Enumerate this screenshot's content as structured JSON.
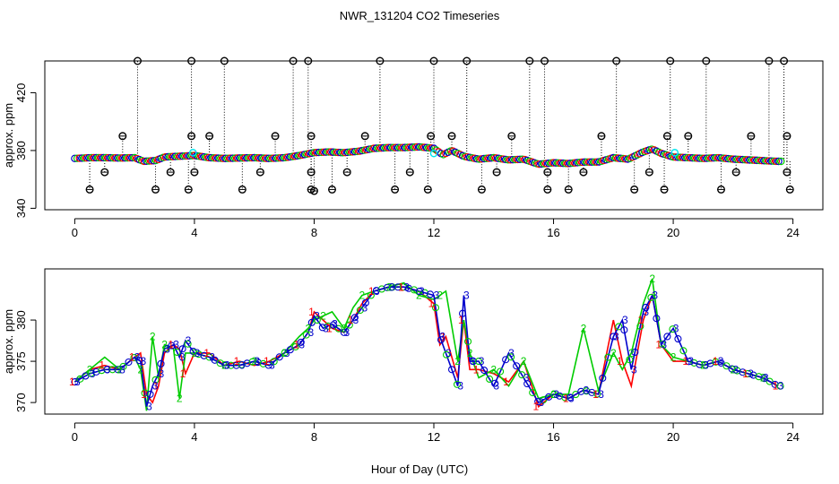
{
  "title": "NWR_131204  CO2 Timeseries",
  "xlabel": "Hour of Day (UTC)",
  "colors": {
    "series1": "#ff0000",
    "series2": "#00cc00",
    "series3": "#0000cc",
    "flagged": "#000000",
    "cyan": "#00e5ee",
    "dotted": "#000000"
  },
  "chart_data": [
    {
      "type": "scatter",
      "name": "top-panel",
      "ylabel": "approx. ppm",
      "xlim": [
        -1,
        25
      ],
      "ylim": [
        339,
        442
      ],
      "xticks": [
        0,
        4,
        8,
        12,
        16,
        20,
        24
      ],
      "yticks": [
        340,
        380,
        420
      ],
      "ytick_labels": [
        "340",
        "380",
        "420"
      ],
      "xtick_labels": [
        "0",
        "4",
        "8",
        "12",
        "16",
        "20",
        "24"
      ],
      "baseline": [
        [
          0,
          374.5
        ],
        [
          0.5,
          375
        ],
        [
          1,
          375
        ],
        [
          1.5,
          374.8
        ],
        [
          2,
          375
        ],
        [
          2.3,
          372.5
        ],
        [
          2.7,
          373
        ],
        [
          3,
          375.5
        ],
        [
          3.5,
          376
        ],
        [
          4,
          376.5
        ],
        [
          4.5,
          375
        ],
        [
          5,
          374.5
        ],
        [
          5.5,
          374.8
        ],
        [
          6,
          375
        ],
        [
          6.5,
          374.5
        ],
        [
          7,
          375
        ],
        [
          7.5,
          376.5
        ],
        [
          8,
          378.5
        ],
        [
          8.5,
          379
        ],
        [
          9,
          378.5
        ],
        [
          9.5,
          379.5
        ],
        [
          10,
          381.5
        ],
        [
          10.5,
          382
        ],
        [
          11,
          382
        ],
        [
          11.5,
          382.5
        ],
        [
          12,
          381.5
        ],
        [
          12.3,
          377
        ],
        [
          12.6,
          380
        ],
        [
          13,
          376
        ],
        [
          13.5,
          374
        ],
        [
          14,
          375
        ],
        [
          14.5,
          373.5
        ],
        [
          15,
          374
        ],
        [
          15.5,
          370.5
        ],
        [
          16,
          371.5
        ],
        [
          16.5,
          371
        ],
        [
          17,
          372
        ],
        [
          17.5,
          372
        ],
        [
          18,
          375
        ],
        [
          18.5,
          374
        ],
        [
          19,
          379
        ],
        [
          19.3,
          381
        ],
        [
          19.6,
          378
        ],
        [
          20,
          375.5
        ],
        [
          20.5,
          375
        ],
        [
          21,
          374.5
        ],
        [
          21.5,
          375
        ],
        [
          22,
          374
        ],
        [
          22.5,
          373.5
        ],
        [
          23,
          373
        ],
        [
          23.5,
          372.5
        ]
      ],
      "flagged_points": [
        [
          0.5,
          353
        ],
        [
          1.0,
          365
        ],
        [
          1.6,
          390
        ],
        [
          2.1,
          442
        ],
        [
          2.7,
          353
        ],
        [
          3.2,
          365
        ],
        [
          3.8,
          353
        ],
        [
          3.9,
          442
        ],
        [
          3.9,
          390
        ],
        [
          4.0,
          365
        ],
        [
          4.5,
          390
        ],
        [
          5.0,
          442
        ],
        [
          5.6,
          353
        ],
        [
          6.2,
          365
        ],
        [
          6.7,
          390
        ],
        [
          7.3,
          442
        ],
        [
          7.8,
          442
        ],
        [
          7.9,
          390
        ],
        [
          7.9,
          365
        ],
        [
          7.9,
          353
        ],
        [
          8.0,
          352
        ],
        [
          8.6,
          353
        ],
        [
          9.1,
          365
        ],
        [
          9.7,
          390
        ],
        [
          10.2,
          442
        ],
        [
          10.7,
          353
        ],
        [
          11.2,
          365
        ],
        [
          11.8,
          353
        ],
        [
          11.9,
          390
        ],
        [
          12.0,
          442
        ],
        [
          12.6,
          390
        ],
        [
          13.1,
          442
        ],
        [
          13.6,
          353
        ],
        [
          14.1,
          365
        ],
        [
          14.6,
          390
        ],
        [
          15.2,
          442
        ],
        [
          15.7,
          442
        ],
        [
          15.8,
          365
        ],
        [
          15.8,
          353
        ],
        [
          16.5,
          353
        ],
        [
          17.0,
          365
        ],
        [
          17.6,
          390
        ],
        [
          18.1,
          442
        ],
        [
          18.7,
          353
        ],
        [
          19.2,
          365
        ],
        [
          19.7,
          353
        ],
        [
          19.8,
          390
        ],
        [
          19.9,
          442
        ],
        [
          20.5,
          390
        ],
        [
          21.1,
          442
        ],
        [
          21.6,
          353
        ],
        [
          22.1,
          365
        ],
        [
          22.6,
          390
        ],
        [
          23.2,
          442
        ],
        [
          23.7,
          442
        ],
        [
          23.8,
          390
        ],
        [
          23.8,
          365
        ],
        [
          23.9,
          353
        ]
      ],
      "cyan_points": [
        [
          3.95,
          378.5
        ],
        [
          12.0,
          378
        ],
        [
          20.05,
          378.5
        ]
      ]
    },
    {
      "type": "line",
      "name": "bottom-panel",
      "ylabel": "approx. ppm",
      "xlim": [
        -1,
        25
      ],
      "ylim": [
        368.6,
        386.2
      ],
      "xticks": [
        0,
        4,
        8,
        12,
        16,
        20,
        24
      ],
      "yticks": [
        370,
        375,
        380
      ],
      "ytick_labels": [
        "370",
        "375",
        "380"
      ],
      "xtick_labels": [
        "0",
        "4",
        "8",
        "12",
        "16",
        "20",
        "24"
      ],
      "series": [
        {
          "name": "1",
          "values": [
            [
              0,
              372.5
            ],
            [
              0.5,
              374
            ],
            [
              1,
              374.5
            ],
            [
              1.5,
              374
            ],
            [
              2,
              375.5
            ],
            [
              2.2,
              376
            ],
            [
              2.4,
              371
            ],
            [
              2.6,
              370
            ],
            [
              2.8,
              372
            ],
            [
              3,
              376
            ],
            [
              3.3,
              377
            ],
            [
              3.5,
              376.5
            ],
            [
              3.7,
              373.5
            ],
            [
              4,
              376
            ],
            [
              4.5,
              376
            ],
            [
              5,
              374.5
            ],
            [
              5.5,
              375
            ],
            [
              6,
              374.5
            ],
            [
              6.5,
              375
            ],
            [
              7,
              376
            ],
            [
              7.5,
              377
            ],
            [
              7.8,
              378.5
            ],
            [
              8,
              381
            ],
            [
              8.3,
              380
            ],
            [
              8.6,
              379
            ],
            [
              9,
              378.5
            ],
            [
              9.3,
              380
            ],
            [
              9.6,
              382
            ],
            [
              10,
              383.5
            ],
            [
              10.5,
              384
            ],
            [
              11,
              384
            ],
            [
              11.5,
              383.5
            ],
            [
              12,
              382
            ],
            [
              12.2,
              377
            ],
            [
              12.4,
              378
            ],
            [
              12.8,
              373
            ],
            [
              13,
              380
            ],
            [
              13.2,
              374
            ],
            [
              13.5,
              374
            ],
            [
              14,
              373.5
            ],
            [
              14.5,
              372.5
            ],
            [
              15,
              375
            ],
            [
              15.5,
              369.5
            ],
            [
              16,
              371
            ],
            [
              16.5,
              370.5
            ],
            [
              17,
              371.5
            ],
            [
              17.5,
              371
            ],
            [
              18,
              380
            ],
            [
              18.3,
              375
            ],
            [
              18.6,
              372
            ],
            [
              19,
              380
            ],
            [
              19.3,
              383
            ],
            [
              19.6,
              377
            ],
            [
              20,
              375
            ],
            [
              20.5,
              375
            ],
            [
              21,
              374.5
            ],
            [
              21.5,
              375
            ],
            [
              22,
              374
            ],
            [
              22.5,
              373.5
            ],
            [
              23,
              373
            ],
            [
              23.5,
              372
            ]
          ]
        },
        {
          "name": "2",
          "values": [
            [
              0,
              372.5
            ],
            [
              0.5,
              374
            ],
            [
              1,
              375.5
            ],
            [
              1.5,
              374
            ],
            [
              2,
              375.5
            ],
            [
              2.2,
              374
            ],
            [
              2.4,
              369
            ],
            [
              2.6,
              378
            ],
            [
              2.8,
              373
            ],
            [
              3,
              377
            ],
            [
              3.3,
              376.5
            ],
            [
              3.5,
              370.5
            ],
            [
              3.7,
              376
            ],
            [
              4,
              376
            ],
            [
              4.5,
              375.5
            ],
            [
              5,
              374.5
            ],
            [
              5.5,
              374.5
            ],
            [
              6,
              375
            ],
            [
              6.5,
              374.5
            ],
            [
              7,
              376
            ],
            [
              7.5,
              378
            ],
            [
              7.8,
              379
            ],
            [
              8,
              380
            ],
            [
              8.3,
              380.5
            ],
            [
              8.6,
              381
            ],
            [
              9,
              379
            ],
            [
              9.3,
              381.5
            ],
            [
              9.6,
              383
            ],
            [
              10,
              383.5
            ],
            [
              10.5,
              384
            ],
            [
              11,
              384.5
            ],
            [
              11.5,
              383
            ],
            [
              12,
              382.5
            ],
            [
              12.2,
              383
            ],
            [
              12.4,
              383.5
            ],
            [
              12.8,
              375
            ],
            [
              13,
              380
            ],
            [
              13.2,
              376
            ],
            [
              13.5,
              373
            ],
            [
              14,
              374
            ],
            [
              14.5,
              372
            ],
            [
              15,
              375
            ],
            [
              15.5,
              370.5
            ],
            [
              16,
              371
            ],
            [
              16.5,
              371
            ],
            [
              17,
              379
            ],
            [
              17.5,
              371.5
            ],
            [
              18,
              376
            ],
            [
              18.3,
              374
            ],
            [
              18.6,
              376
            ],
            [
              19,
              382
            ],
            [
              19.3,
              385
            ],
            [
              19.6,
              377
            ],
            [
              20,
              375.5
            ],
            [
              20.5,
              375
            ],
            [
              21,
              374.5
            ],
            [
              21.5,
              375
            ],
            [
              22,
              374
            ],
            [
              22.5,
              373.5
            ],
            [
              23,
              373
            ],
            [
              23.5,
              372
            ]
          ]
        },
        {
          "name": "3",
          "values": [
            [
              0,
              372.5
            ],
            [
              0.5,
              373.5
            ],
            [
              1,
              374
            ],
            [
              1.5,
              374
            ],
            [
              2,
              375.5
            ],
            [
              2.2,
              375
            ],
            [
              2.4,
              369.5
            ],
            [
              2.6,
              372
            ],
            [
              2.8,
              373.5
            ],
            [
              3,
              376.5
            ],
            [
              3.3,
              377
            ],
            [
              3.5,
              375.5
            ],
            [
              3.7,
              377.5
            ],
            [
              4,
              376
            ],
            [
              4.5,
              375.5
            ],
            [
              5,
              374.5
            ],
            [
              5.5,
              374.5
            ],
            [
              6,
              375
            ],
            [
              6.5,
              374.5
            ],
            [
              7,
              376
            ],
            [
              7.5,
              377
            ],
            [
              7.8,
              378.5
            ],
            [
              8,
              380.5
            ],
            [
              8.3,
              379
            ],
            [
              8.6,
              379.5
            ],
            [
              9,
              378.5
            ],
            [
              9.3,
              380
            ],
            [
              9.6,
              381.5
            ],
            [
              10,
              383.5
            ],
            [
              10.5,
              384
            ],
            [
              11,
              384
            ],
            [
              11.5,
              383.5
            ],
            [
              12,
              383
            ],
            [
              12.2,
              378
            ],
            [
              12.4,
              376
            ],
            [
              12.8,
              372
            ],
            [
              13,
              383
            ],
            [
              13.2,
              375
            ],
            [
              13.5,
              375
            ],
            [
              14,
              372
            ],
            [
              14.5,
              376
            ],
            [
              15,
              373
            ],
            [
              15.5,
              370
            ],
            [
              16,
              371
            ],
            [
              16.5,
              370.5
            ],
            [
              17,
              371.5
            ],
            [
              17.5,
              371
            ],
            [
              18,
              378
            ],
            [
              18.3,
              380
            ],
            [
              18.6,
              374
            ],
            [
              19,
              381
            ],
            [
              19.3,
              383
            ],
            [
              19.6,
              377
            ],
            [
              20,
              379
            ],
            [
              20.5,
              375
            ],
            [
              21,
              374.5
            ],
            [
              21.5,
              375
            ],
            [
              22,
              374
            ],
            [
              22.5,
              373.5
            ],
            [
              23,
              373
            ],
            [
              23.5,
              372
            ]
          ]
        }
      ]
    }
  ]
}
